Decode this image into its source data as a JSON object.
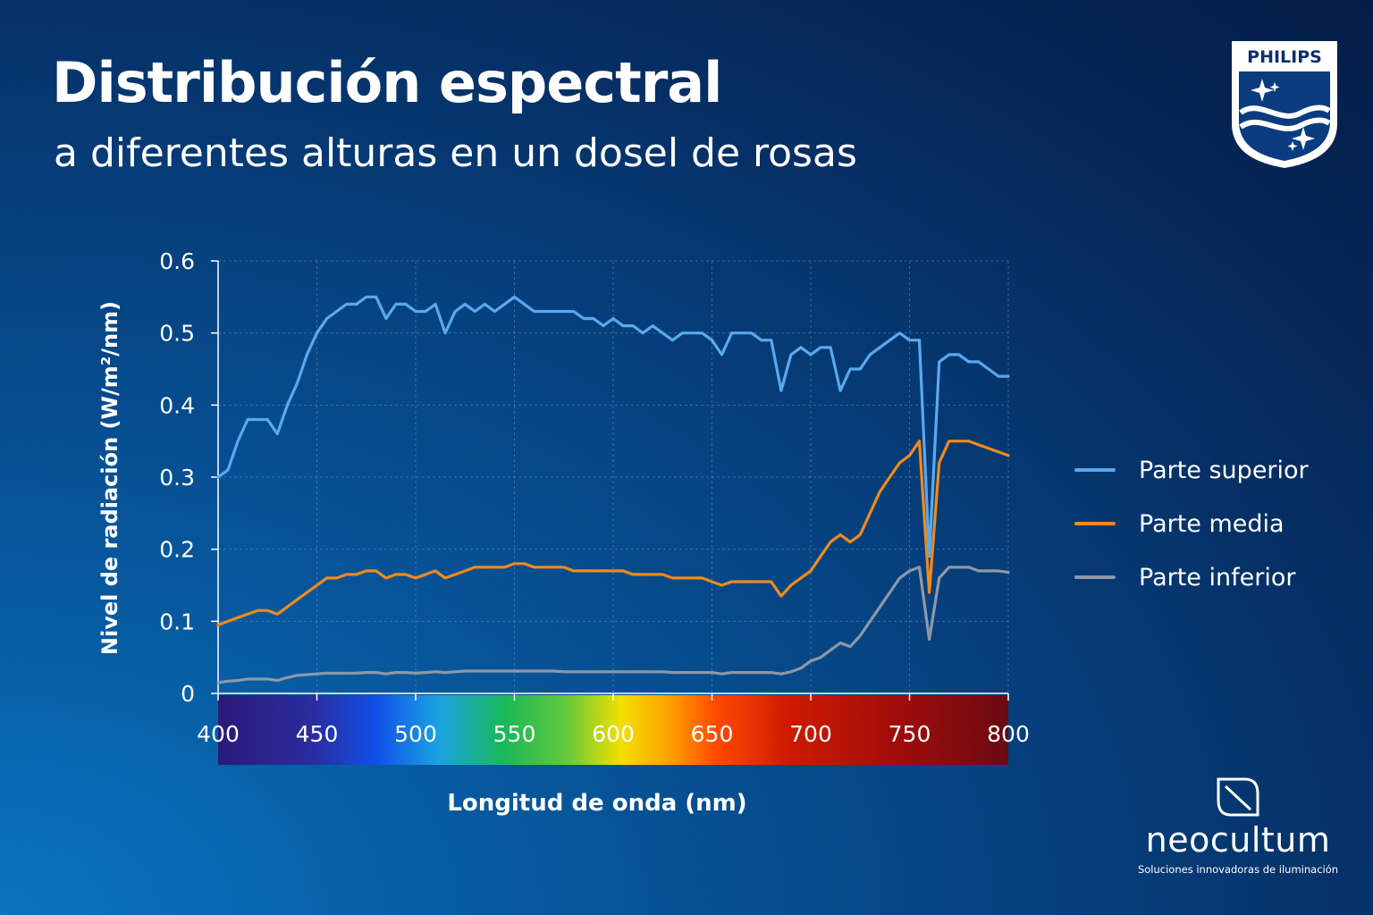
{
  "header": {
    "title": "Distribución espectral",
    "subtitle": "a diferentes alturas en un dosel de rosas"
  },
  "brand": {
    "philips": "PHILIPS",
    "neocultum": "neocultum",
    "neocultum_tagline": "Soluciones innovadoras de iluminación"
  },
  "colors": {
    "background": "#063f7c",
    "series_top": "#5aa8ee",
    "series_middle": "#f08a1c",
    "series_bottom": "#8e98a6",
    "grid": "#7f9cc2"
  },
  "chart_data": {
    "type": "line",
    "xlabel": "Longitud de onda (nm)",
    "ylabel": "Nivel de radiación (W/m²/nm)",
    "xlim": [
      400,
      800
    ],
    "ylim": [
      0,
      0.6
    ],
    "xticks": [
      "400",
      "450",
      "500",
      "550",
      "600",
      "650",
      "700",
      "750",
      "800"
    ],
    "yticks": [
      "0",
      "0.1",
      "0.2",
      "0.3",
      "0.4",
      "0.5",
      "0.6"
    ],
    "grid": true,
    "legend_position": "right",
    "spectrum_bar_below_x_axis": true,
    "x": [
      400,
      405,
      410,
      415,
      420,
      425,
      430,
      435,
      440,
      445,
      450,
      455,
      460,
      465,
      470,
      475,
      480,
      485,
      490,
      495,
      500,
      505,
      510,
      515,
      520,
      525,
      530,
      535,
      540,
      545,
      550,
      555,
      560,
      565,
      570,
      575,
      580,
      585,
      590,
      595,
      600,
      605,
      610,
      615,
      620,
      625,
      630,
      635,
      640,
      645,
      650,
      655,
      660,
      665,
      670,
      675,
      680,
      685,
      690,
      695,
      700,
      705,
      710,
      715,
      720,
      725,
      730,
      735,
      740,
      745,
      750,
      755,
      760,
      765,
      770,
      775,
      780,
      785,
      790,
      795,
      800
    ],
    "series": [
      {
        "name": "Parte superior",
        "values": [
          0.3,
          0.31,
          0.35,
          0.38,
          0.38,
          0.38,
          0.36,
          0.4,
          0.43,
          0.47,
          0.5,
          0.52,
          0.53,
          0.54,
          0.54,
          0.55,
          0.55,
          0.52,
          0.54,
          0.54,
          0.53,
          0.53,
          0.54,
          0.5,
          0.53,
          0.54,
          0.53,
          0.54,
          0.53,
          0.54,
          0.55,
          0.54,
          0.53,
          0.53,
          0.53,
          0.53,
          0.53,
          0.52,
          0.52,
          0.51,
          0.52,
          0.51,
          0.51,
          0.5,
          0.51,
          0.5,
          0.49,
          0.5,
          0.5,
          0.5,
          0.49,
          0.47,
          0.5,
          0.5,
          0.5,
          0.49,
          0.49,
          0.42,
          0.47,
          0.48,
          0.47,
          0.48,
          0.48,
          0.42,
          0.45,
          0.45,
          0.47,
          0.48,
          0.49,
          0.5,
          0.49,
          0.49,
          0.19,
          0.46,
          0.47,
          0.47,
          0.46,
          0.46,
          0.45,
          0.44,
          0.44
        ]
      },
      {
        "name": "Parte media",
        "values": [
          0.095,
          0.1,
          0.105,
          0.11,
          0.115,
          0.115,
          0.11,
          0.12,
          0.13,
          0.14,
          0.15,
          0.16,
          0.16,
          0.165,
          0.165,
          0.17,
          0.17,
          0.16,
          0.165,
          0.165,
          0.16,
          0.165,
          0.17,
          0.16,
          0.165,
          0.17,
          0.175,
          0.175,
          0.175,
          0.175,
          0.18,
          0.18,
          0.175,
          0.175,
          0.175,
          0.175,
          0.17,
          0.17,
          0.17,
          0.17,
          0.17,
          0.17,
          0.165,
          0.165,
          0.165,
          0.165,
          0.16,
          0.16,
          0.16,
          0.16,
          0.155,
          0.15,
          0.155,
          0.155,
          0.155,
          0.155,
          0.155,
          0.135,
          0.15,
          0.16,
          0.17,
          0.19,
          0.21,
          0.22,
          0.21,
          0.22,
          0.25,
          0.28,
          0.3,
          0.32,
          0.33,
          0.35,
          0.14,
          0.32,
          0.35,
          0.35,
          0.35,
          0.345,
          0.34,
          0.335,
          0.33
        ]
      },
      {
        "name": "Parte inferior",
        "values": [
          0.015,
          0.017,
          0.018,
          0.02,
          0.02,
          0.02,
          0.018,
          0.022,
          0.025,
          0.026,
          0.027,
          0.028,
          0.028,
          0.028,
          0.028,
          0.029,
          0.029,
          0.027,
          0.029,
          0.029,
          0.028,
          0.029,
          0.03,
          0.029,
          0.03,
          0.031,
          0.031,
          0.031,
          0.031,
          0.031,
          0.031,
          0.031,
          0.031,
          0.031,
          0.031,
          0.03,
          0.03,
          0.03,
          0.03,
          0.03,
          0.03,
          0.03,
          0.03,
          0.03,
          0.03,
          0.03,
          0.029,
          0.029,
          0.029,
          0.029,
          0.029,
          0.027,
          0.029,
          0.029,
          0.029,
          0.029,
          0.029,
          0.027,
          0.03,
          0.035,
          0.045,
          0.05,
          0.06,
          0.07,
          0.065,
          0.08,
          0.1,
          0.12,
          0.14,
          0.16,
          0.17,
          0.175,
          0.075,
          0.16,
          0.175,
          0.175,
          0.175,
          0.17,
          0.17,
          0.17,
          0.168
        ]
      }
    ]
  }
}
